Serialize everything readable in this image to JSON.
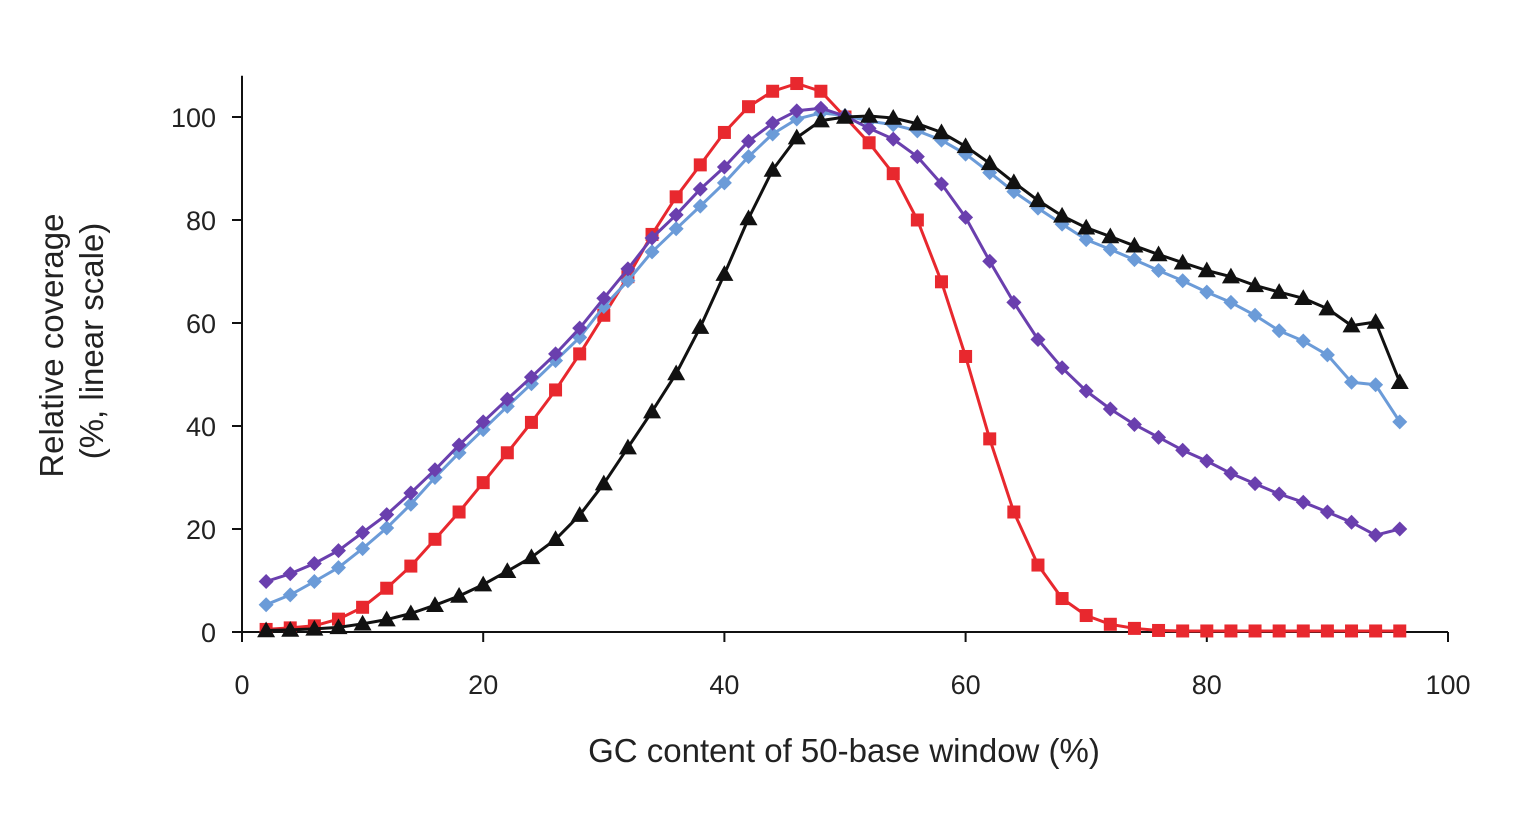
{
  "chart_data": {
    "type": "line",
    "title": "",
    "xlabel": "GC content of 50-base window (%)",
    "ylabel_lines": [
      "Relative coverage",
      "(%, linear scale)"
    ],
    "xlim": [
      0,
      100
    ],
    "ylim": [
      0,
      108
    ],
    "x_ticks": [
      0,
      20,
      40,
      60,
      80,
      100
    ],
    "y_ticks": [
      0,
      20,
      40,
      60,
      80,
      100
    ],
    "grid": false,
    "legend": "none",
    "x": [
      2,
      4,
      6,
      8,
      10,
      12,
      14,
      16,
      18,
      20,
      22,
      24,
      26,
      28,
      30,
      32,
      34,
      36,
      38,
      40,
      42,
      44,
      46,
      48,
      50,
      52,
      54,
      56,
      58,
      60,
      62,
      64,
      66,
      68,
      70,
      72,
      74,
      76,
      78,
      80,
      82,
      84,
      86,
      88,
      90,
      92,
      94,
      96
    ],
    "series": [
      {
        "color": "#e8282e",
        "marker": "square",
        "values": [
          0.5,
          0.8,
          1.2,
          2.5,
          4.8,
          8.5,
          12.8,
          18.0,
          23.3,
          29.0,
          34.8,
          40.7,
          47.0,
          54.0,
          61.5,
          69.0,
          77.2,
          84.5,
          90.7,
          97.0,
          102.0,
          105.0,
          106.5,
          105.0,
          100.0,
          95.0,
          89.0,
          80.0,
          68.0,
          53.5,
          37.5,
          23.3,
          13.0,
          6.5,
          3.2,
          1.5,
          0.7,
          0.3,
          0.2,
          0.2,
          0.2,
          0.2,
          0.2,
          0.2,
          0.2,
          0.2,
          0.2,
          0.2
        ]
      },
      {
        "color": "#6b9bd8",
        "marker": "diamond",
        "values": [
          5.3,
          7.2,
          9.8,
          12.5,
          16.2,
          20.2,
          24.8,
          30.0,
          34.8,
          39.3,
          43.8,
          48.2,
          52.7,
          57.2,
          63.2,
          68.2,
          73.8,
          78.3,
          82.7,
          87.2,
          92.3,
          96.7,
          99.6,
          100.8,
          100.3,
          99.2,
          98.5,
          97.3,
          95.5,
          92.8,
          89.2,
          85.5,
          82.3,
          79.2,
          76.2,
          74.3,
          72.3,
          70.2,
          68.2,
          66.0,
          64.0,
          61.5,
          58.5,
          56.5,
          53.8,
          48.5,
          48.0,
          40.8
        ]
      },
      {
        "color": "#6a3fae",
        "marker": "diamond",
        "values": [
          9.8,
          11.3,
          13.3,
          15.8,
          19.3,
          22.8,
          27.0,
          31.5,
          36.3,
          40.8,
          45.2,
          49.5,
          54.0,
          59.0,
          64.8,
          70.5,
          76.5,
          81.0,
          86.0,
          90.3,
          95.3,
          98.8,
          101.2,
          101.7,
          100.2,
          97.8,
          95.7,
          92.3,
          87.0,
          80.5,
          72.0,
          64.0,
          56.8,
          51.3,
          46.8,
          43.3,
          40.3,
          37.8,
          35.3,
          33.2,
          30.8,
          28.8,
          26.8,
          25.2,
          23.3,
          21.3,
          18.8,
          20.0
        ]
      },
      {
        "color": "#111111",
        "marker": "triangle",
        "values": [
          0.3,
          0.4,
          0.6,
          0.9,
          1.6,
          2.4,
          3.6,
          5.2,
          7.0,
          9.2,
          11.8,
          14.5,
          18.0,
          22.7,
          28.8,
          35.8,
          42.8,
          50.2,
          59.2,
          69.5,
          80.3,
          89.7,
          96.0,
          99.3,
          100.0,
          100.2,
          99.8,
          98.7,
          97.0,
          94.3,
          91.0,
          87.3,
          83.8,
          80.8,
          78.5,
          76.8,
          75.0,
          73.3,
          71.7,
          70.2,
          69.0,
          67.3,
          66.0,
          64.8,
          62.8,
          59.5,
          60.2,
          48.5
        ]
      }
    ]
  }
}
